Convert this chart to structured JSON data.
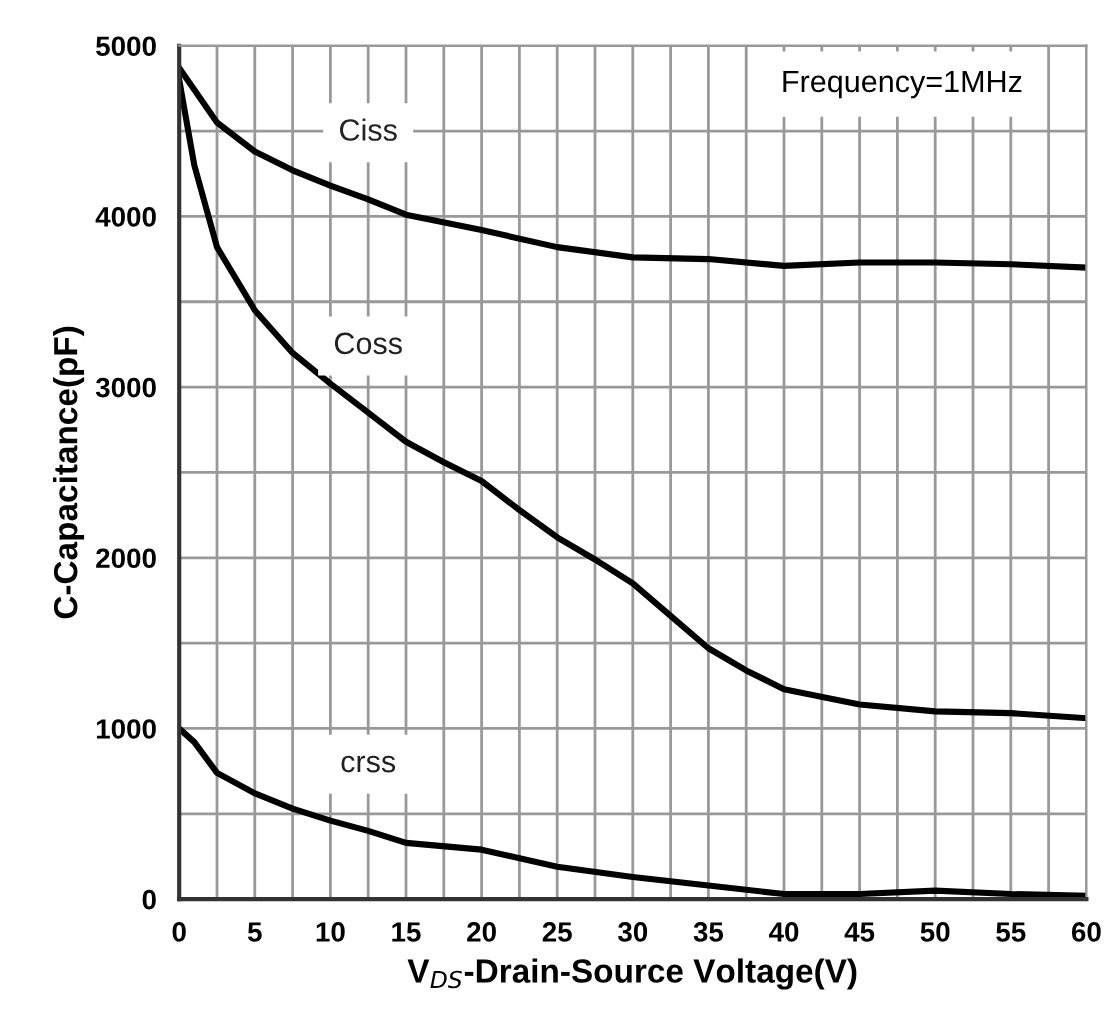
{
  "chart_data": {
    "type": "line",
    "xlabel": "V$_{DS}$-Drain-Source Voltage(V)",
    "ylabel": "C-Capacitance(pF)",
    "annotations": [
      "Frequency=1MHz"
    ],
    "xlim": [
      0,
      60
    ],
    "ylim": [
      0,
      5000
    ],
    "xticks": [
      0,
      {
        "value": 2.5,
        "label": null
      },
      5,
      {
        "value": 7.5,
        "label": null
      },
      10,
      {
        "value": 12.5,
        "label": null
      },
      15,
      {
        "value": 17.5,
        "label": null
      },
      20,
      {
        "value": 22.5,
        "label": null
      },
      25,
      {
        "value": 27.5,
        "label": null
      },
      30,
      {
        "value": 32.5,
        "label": null
      },
      35,
      {
        "value": 37.5,
        "label": null
      },
      40,
      {
        "value": 42.5,
        "label": null
      },
      45,
      {
        "value": 47.5,
        "label": null
      },
      50,
      {
        "value": 52.5,
        "label": null
      },
      55,
      {
        "value": 57.5,
        "label": null
      },
      60
    ],
    "yticks": [
      0,
      {
        "value": 500,
        "label": null
      },
      1000,
      {
        "value": 1500,
        "label": null
      },
      2000,
      {
        "value": 2500,
        "label": null
      },
      3000,
      {
        "value": 3500,
        "label": null
      },
      4000,
      {
        "value": 4500,
        "label": null
      },
      5000
    ],
    "grid": true,
    "legend": false,
    "marker": "none",
    "line_style": "solid",
    "series": [
      {
        "name": "Ciss",
        "color": "#000000",
        "x": [
          0,
          2.5,
          5,
          7.5,
          10,
          12.5,
          15,
          20,
          25,
          30,
          35,
          40,
          45,
          50,
          55,
          60
        ],
        "values": [
          4870,
          4550,
          4380,
          4270,
          4180,
          4100,
          4010,
          3920,
          3820,
          3760,
          3750,
          3710,
          3730,
          3730,
          3720,
          3700
        ]
      },
      {
        "name": "Coss",
        "color": "#000000",
        "x": [
          0,
          1,
          2.5,
          5,
          7.5,
          10,
          12.5,
          15,
          17.5,
          20,
          22.5,
          25,
          27.5,
          30,
          32.5,
          35,
          37.5,
          40,
          45,
          50,
          55,
          60
        ],
        "values": [
          4800,
          4300,
          3820,
          3450,
          3200,
          3020,
          2850,
          2680,
          2560,
          2450,
          2280,
          2120,
          1990,
          1850,
          1660,
          1470,
          1340,
          1230,
          1140,
          1100,
          1090,
          1060
        ]
      },
      {
        "name": "crss",
        "color": "#000000",
        "x": [
          0,
          1,
          2.5,
          5,
          7.5,
          10,
          12.5,
          15,
          20,
          25,
          30,
          35,
          40,
          45,
          50,
          55,
          60
        ],
        "values": [
          1000,
          920,
          740,
          620,
          530,
          460,
          400,
          330,
          290,
          190,
          130,
          80,
          30,
          30,
          50,
          30,
          20
        ]
      }
    ]
  }
}
